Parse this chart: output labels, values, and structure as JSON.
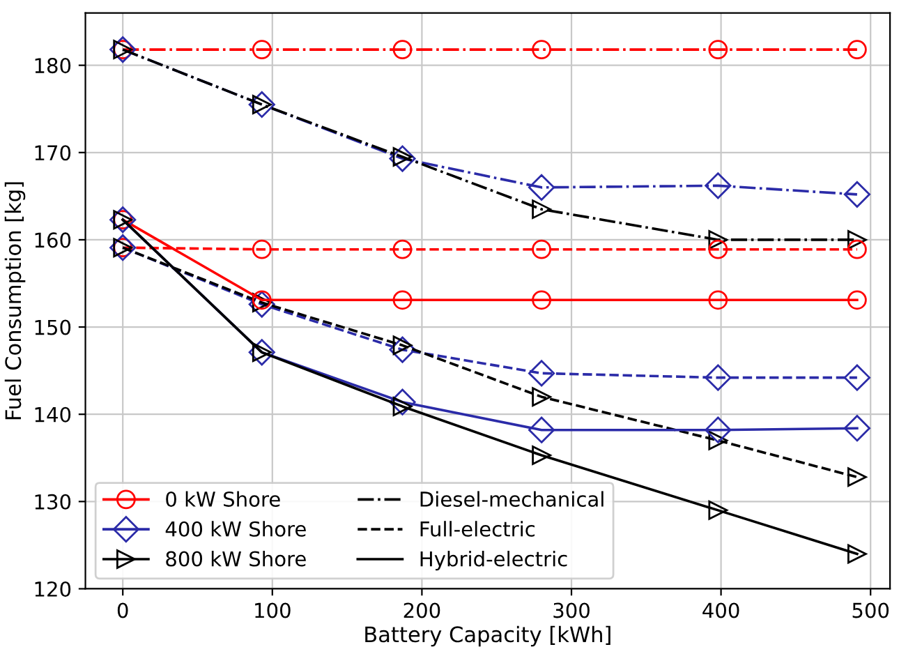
{
  "chart_data": {
    "type": "line",
    "xlabel": "Battery Capacity [kWh]",
    "ylabel": "Fuel Consumption [kg]",
    "x": [
      0,
      93,
      187,
      280,
      398,
      491
    ],
    "xlim": [
      -25,
      513
    ],
    "xticks": [
      0,
      100,
      200,
      300,
      400,
      500
    ],
    "ylim": [
      120,
      186
    ],
    "yticks": [
      120,
      130,
      140,
      150,
      160,
      170,
      180
    ],
    "grid": true,
    "legend": "bottom left",
    "series": [
      {
        "color": "#ff0000",
        "marker": "circle",
        "line_style": "dashdot",
        "values": [
          181.8,
          181.8,
          181.8,
          181.8,
          181.8,
          181.8
        ]
      },
      {
        "color": "#2b2ba8",
        "marker": "diamond",
        "line_style": "dashdot",
        "values": [
          181.8,
          175.5,
          169.3,
          166.0,
          166.2,
          165.2
        ]
      },
      {
        "color": "#000000",
        "marker": "triangle",
        "line_style": "dashdot",
        "values": [
          181.8,
          175.5,
          169.5,
          163.5,
          160.0,
          160.0
        ]
      },
      {
        "color": "#ff0000",
        "marker": "circle",
        "line_style": "dashed",
        "values": [
          159.1,
          158.9,
          158.9,
          158.9,
          158.9,
          158.9
        ]
      },
      {
        "color": "#2b2ba8",
        "marker": "diamond",
        "line_style": "dashed",
        "values": [
          159.1,
          152.6,
          147.4,
          144.7,
          144.2,
          144.2
        ]
      },
      {
        "color": "#000000",
        "marker": "triangle",
        "line_style": "dashed",
        "values": [
          159.1,
          152.8,
          147.9,
          142.0,
          137.0,
          132.8
        ]
      },
      {
        "name": "0 kW Shore",
        "color": "#ff0000",
        "marker": "circle",
        "line_style": "solid",
        "values": [
          162.3,
          153.1,
          153.1,
          153.1,
          153.1,
          153.1
        ]
      },
      {
        "name": "400 kW Shore",
        "color": "#2b2ba8",
        "marker": "diamond",
        "line_style": "solid",
        "values": [
          162.3,
          147.1,
          141.4,
          138.2,
          138.2,
          138.4
        ]
      },
      {
        "name": "800 kW Shore",
        "color": "#000000",
        "marker": "triangle",
        "line_style": "solid",
        "values": [
          162.3,
          147.1,
          140.9,
          135.3,
          129.0,
          124.0
        ]
      },
      {
        "name": "Diesel-mechanical",
        "color": "#000000",
        "marker": "none",
        "line_style": "dashdot",
        "values": [
          null,
          null,
          null,
          null,
          null,
          null
        ]
      },
      {
        "name": "Full-electric",
        "color": "#000000",
        "marker": "none",
        "line_style": "dashed",
        "values": [
          null,
          null,
          null,
          null,
          null,
          null
        ]
      },
      {
        "name": "Hybrid-electric",
        "color": "#000000",
        "marker": "none",
        "line_style": "solid",
        "values": [
          null,
          null,
          null,
          null,
          null,
          null
        ]
      }
    ]
  }
}
